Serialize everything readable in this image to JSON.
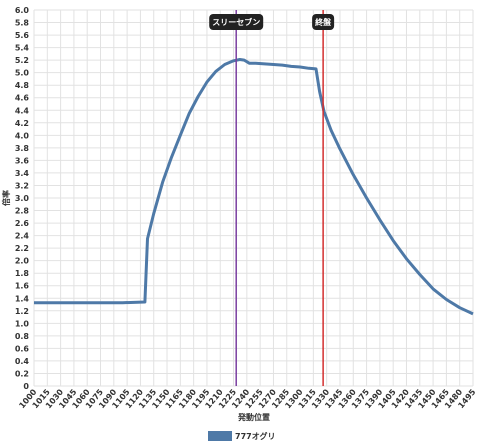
{
  "chart_data": {
    "type": "line",
    "xlabel": "発動位置",
    "ylabel": "倍率",
    "ylim": [
      0,
      6.0
    ],
    "y_ticks": [
      "0",
      "0.2",
      "0.4",
      "0.6",
      "0.8",
      "1.0",
      "1.2",
      "1.4",
      "1.6",
      "1.8",
      "2.0",
      "2.2",
      "2.4",
      "2.6",
      "2.8",
      "3.0",
      "3.2",
      "3.4",
      "3.6",
      "3.8",
      "4.0",
      "4.2",
      "4.4",
      "4.6",
      "4.8",
      "5.0",
      "5.2",
      "5.4",
      "5.6",
      "5.8",
      "6.0"
    ],
    "x_ticks": [
      "1000",
      "1015",
      "1030",
      "1045",
      "1060",
      "1075",
      "1090",
      "1105",
      "1120",
      "1135",
      "1150",
      "1165",
      "1180",
      "1195",
      "1210",
      "1225",
      "1240",
      "1255",
      "1270",
      "1285",
      "1300",
      "1315",
      "1330",
      "1345",
      "1360",
      "1375",
      "1390",
      "1405",
      "1420",
      "1435",
      "1450",
      "1465",
      "1480",
      "1495"
    ],
    "grid": true,
    "legend_position": "bottom",
    "series": [
      {
        "name": "777オグリ",
        "color": "#4e79a7",
        "points": [
          [
            1000,
            1.33
          ],
          [
            1050,
            1.33
          ],
          [
            1100,
            1.33
          ],
          [
            1125,
            1.34
          ],
          [
            1128,
            2.35
          ],
          [
            1135,
            2.75
          ],
          [
            1145,
            3.25
          ],
          [
            1155,
            3.65
          ],
          [
            1165,
            4.0
          ],
          [
            1175,
            4.35
          ],
          [
            1185,
            4.62
          ],
          [
            1195,
            4.85
          ],
          [
            1205,
            5.02
          ],
          [
            1215,
            5.13
          ],
          [
            1225,
            5.19
          ],
          [
            1232,
            5.21
          ],
          [
            1237,
            5.2
          ],
          [
            1243,
            5.15
          ],
          [
            1250,
            5.15
          ],
          [
            1260,
            5.14
          ],
          [
            1270,
            5.13
          ],
          [
            1280,
            5.12
          ],
          [
            1290,
            5.1
          ],
          [
            1300,
            5.09
          ],
          [
            1310,
            5.07
          ],
          [
            1318,
            5.06
          ],
          [
            1322,
            4.7
          ],
          [
            1327,
            4.38
          ],
          [
            1335,
            4.08
          ],
          [
            1345,
            3.78
          ],
          [
            1360,
            3.37
          ],
          [
            1375,
            3.0
          ],
          [
            1390,
            2.65
          ],
          [
            1405,
            2.32
          ],
          [
            1420,
            2.03
          ],
          [
            1435,
            1.78
          ],
          [
            1450,
            1.55
          ],
          [
            1465,
            1.38
          ],
          [
            1480,
            1.25
          ],
          [
            1495,
            1.15
          ]
        ]
      }
    ],
    "annotations": [
      {
        "label": "スリーセブン",
        "x": 1228,
        "color": "#7b3fa0"
      },
      {
        "label": "終盤",
        "x": 1326,
        "color": "#d32f2f"
      }
    ]
  }
}
